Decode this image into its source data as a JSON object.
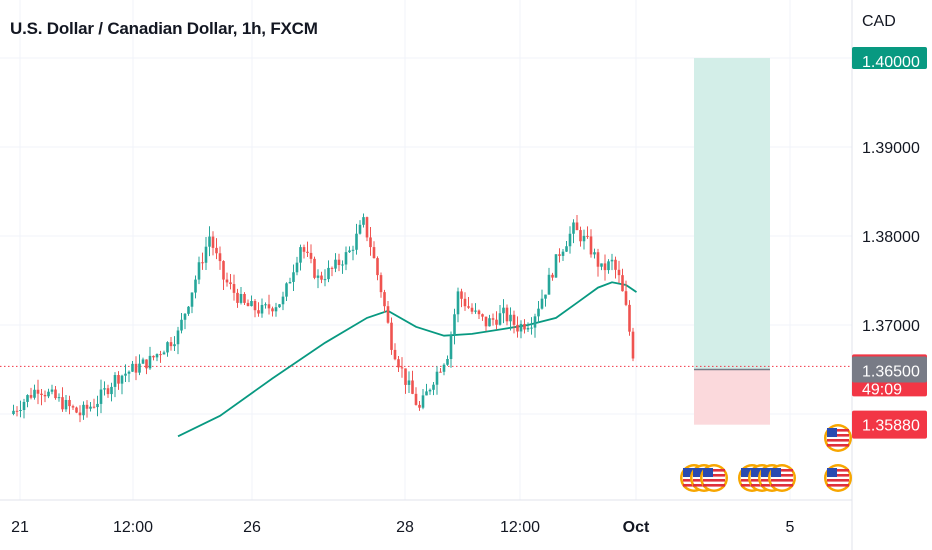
{
  "header": {
    "title": "U.S. Dollar / Canadian Dollar, 1h, FXCM",
    "currency": "CAD"
  },
  "colors": {
    "up": "#26a69a",
    "down": "#ef5350",
    "ma": "#089981",
    "grid": "#f0f3fa",
    "profit_zone": "#d3eee8",
    "loss_zone": "#fbd9dc",
    "target_badge": "#089981",
    "price_badge": "#f23645",
    "entry_badge": "#787b86",
    "stop_badge": "#f23645"
  },
  "price_badges": {
    "target": "1.40000",
    "last_price": "1.36535",
    "countdown": "49:09",
    "entry": "1.36500",
    "stop": "1.35880"
  },
  "event_icons": [
    "us-flag-icon",
    "us-flag-icon",
    "us-flag-icon",
    "us-flag-icon"
  ],
  "chart_data": {
    "type": "candlestick",
    "title": "U.S. Dollar / Canadian Dollar, 1h, FXCM",
    "y_unit": "CAD",
    "ylim": [
      1.3555,
      1.4055
    ],
    "y_ticks": [
      "1.37000",
      "1.38000",
      "1.39000"
    ],
    "x_ticks": [
      "21",
      "12:00",
      "26",
      "28",
      "12:00",
      "Oct",
      "5"
    ],
    "grid": true,
    "series": [
      {
        "name": "USD/CAD",
        "close_path": [
          [
            0,
            1.36
          ],
          [
            8,
            1.363
          ],
          [
            15,
            1.3612
          ],
          [
            20,
            1.36
          ],
          [
            25,
            1.3615
          ],
          [
            30,
            1.364
          ],
          [
            40,
            1.366
          ],
          [
            48,
            1.369
          ],
          [
            53,
            1.3752
          ],
          [
            57,
            1.38
          ],
          [
            61,
            1.3752
          ],
          [
            67,
            1.3722
          ],
          [
            72,
            1.3716
          ],
          [
            78,
            1.3728
          ],
          [
            83,
            1.379
          ],
          [
            88,
            1.3752
          ],
          [
            92,
            1.3762
          ],
          [
            97,
            1.3782
          ],
          [
            101,
            1.3815
          ],
          [
            103,
            1.379
          ],
          [
            106,
            1.374
          ],
          [
            109,
            1.368
          ],
          [
            113,
            1.3638
          ],
          [
            117,
            1.3605
          ],
          [
            121,
            1.364
          ],
          [
            125,
            1.3668
          ],
          [
            128,
            1.3735
          ],
          [
            132,
            1.3715
          ],
          [
            136,
            1.3702
          ],
          [
            141,
            1.3712
          ],
          [
            145,
            1.3698
          ],
          [
            149,
            1.3705
          ],
          [
            153,
            1.374
          ],
          [
            157,
            1.3782
          ],
          [
            161,
            1.3808
          ],
          [
            165,
            1.3792
          ],
          [
            169,
            1.3762
          ],
          [
            172,
            1.377
          ],
          [
            174,
            1.3752
          ],
          [
            176,
            1.3718
          ],
          [
            178,
            1.3668
          ]
        ],
        "ma_path": [
          [
            48,
            1.3575
          ],
          [
            60,
            1.3598
          ],
          [
            75,
            1.364
          ],
          [
            90,
            1.368
          ],
          [
            102,
            1.3708
          ],
          [
            108,
            1.3716
          ],
          [
            116,
            1.3698
          ],
          [
            124,
            1.3688
          ],
          [
            132,
            1.369
          ],
          [
            140,
            1.3695
          ],
          [
            148,
            1.37
          ],
          [
            156,
            1.3708
          ],
          [
            162,
            1.3725
          ],
          [
            168,
            1.3742
          ],
          [
            172,
            1.3748
          ],
          [
            176,
            1.3745
          ],
          [
            179,
            1.3737
          ]
        ]
      }
    ],
    "position": {
      "entry": 1.365,
      "target": 1.4,
      "stop": 1.3588
    },
    "last_price": 1.36535
  }
}
